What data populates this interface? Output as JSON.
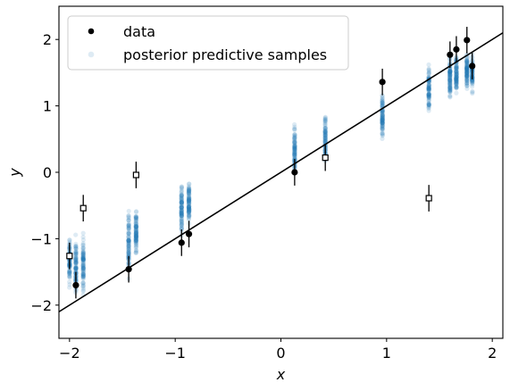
{
  "chart_data": {
    "type": "scatter",
    "title": "",
    "xlabel": "x",
    "ylabel": "y",
    "xlim": [
      -2.1,
      2.1
    ],
    "ylim": [
      -2.5,
      2.5
    ],
    "x_ticks": [
      -2,
      -1,
      0,
      1,
      2
    ],
    "x_tick_labels": [
      "−2",
      "−1",
      "0",
      "1",
      "2"
    ],
    "y_ticks": [
      -2,
      -1,
      0,
      1,
      2
    ],
    "y_tick_labels": [
      "−2",
      "−1",
      "0",
      "1",
      "2"
    ],
    "grid": false,
    "legend": {
      "placement": "top-left",
      "entries": [
        {
          "label": "data",
          "marker": "filled-circle",
          "color": "#000000"
        },
        {
          "label": "posterior predictive samples",
          "marker": "filled-circle",
          "color": "#1f77b4",
          "alpha": 0.15
        }
      ]
    },
    "fit_line": {
      "x": [
        -2.1,
        2.1
      ],
      "y": [
        -2.1,
        2.1
      ],
      "color": "#000000"
    },
    "data_points": [
      {
        "x": -1.94,
        "y": -1.7,
        "err": 0.2
      },
      {
        "x": -1.44,
        "y": -1.46,
        "err": 0.2
      },
      {
        "x": -0.94,
        "y": -1.06,
        "err": 0.2
      },
      {
        "x": -0.87,
        "y": -0.93,
        "err": 0.2
      },
      {
        "x": 0.13,
        "y": 0.0,
        "err": 0.2
      },
      {
        "x": 0.96,
        "y": 1.36,
        "err": 0.2
      },
      {
        "x": 1.6,
        "y": 1.77,
        "err": 0.2
      },
      {
        "x": 1.66,
        "y": 1.85,
        "err": 0.2
      },
      {
        "x": 1.76,
        "y": 1.99,
        "err": 0.2
      },
      {
        "x": 1.81,
        "y": 1.6,
        "err": 0.2
      }
    ],
    "outlier_points": [
      {
        "x": -2.0,
        "y": -1.26,
        "err": 0.2
      },
      {
        "x": -1.87,
        "y": -0.54,
        "err": 0.2
      },
      {
        "x": -1.37,
        "y": -0.04,
        "err": 0.2
      },
      {
        "x": 0.42,
        "y": 0.22,
        "err": 0.2
      },
      {
        "x": 1.4,
        "y": -0.39,
        "err": 0.2
      }
    ],
    "posterior_predictive_columns": [
      {
        "x": -2.0,
        "y_min": -1.85,
        "y_max": -0.85
      },
      {
        "x": -1.94,
        "y_min": -1.95,
        "y_max": -0.9
      },
      {
        "x": -1.87,
        "y_min": -1.9,
        "y_max": -0.85
      },
      {
        "x": -1.44,
        "y_min": -1.7,
        "y_max": -0.45
      },
      {
        "x": -1.37,
        "y_min": -1.35,
        "y_max": -0.45
      },
      {
        "x": -0.94,
        "y_min": -1.05,
        "y_max": -0.05
      },
      {
        "x": -0.87,
        "y_min": -0.95,
        "y_max": -0.05
      },
      {
        "x": 0.13,
        "y_min": -0.2,
        "y_max": 0.8
      },
      {
        "x": 0.42,
        "y_min": 0.0,
        "y_max": 0.98
      },
      {
        "x": 0.96,
        "y_min": 0.38,
        "y_max": 1.3
      },
      {
        "x": 1.4,
        "y_min": 0.85,
        "y_max": 1.7
      },
      {
        "x": 1.6,
        "y_min": 1.0,
        "y_max": 1.85
      },
      {
        "x": 1.66,
        "y_min": 1.05,
        "y_max": 1.9
      },
      {
        "x": 1.76,
        "y_min": 1.15,
        "y_max": 1.9
      },
      {
        "x": 1.81,
        "y_min": 1.15,
        "y_max": 1.85
      }
    ]
  }
}
